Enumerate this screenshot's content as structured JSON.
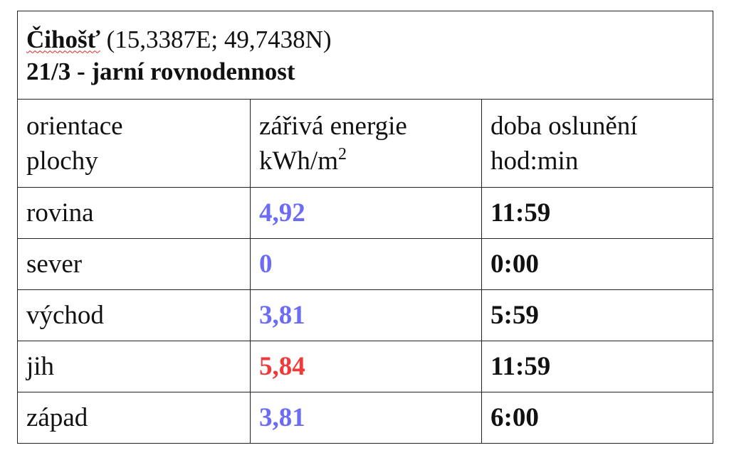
{
  "header": {
    "place": "Čihošť",
    "coordinates": "(15,3387E; 49,7438N)",
    "subtitle": "21/3 - jarní rovnodennost"
  },
  "table": {
    "columns": [
      {
        "lines": [
          "orientace",
          "plochy"
        ]
      },
      {
        "lines": [
          "zářivá energie",
          "kWh/m"
        ],
        "superscript": "2"
      },
      {
        "lines": [
          "doba oslunění",
          "hod:min"
        ]
      }
    ],
    "rows": [
      {
        "orientation": "rovina",
        "energy": "4,92",
        "energy_color": "#6b6bf5",
        "duration": "11:59"
      },
      {
        "orientation": "sever",
        "energy": "0",
        "energy_color": "#6b6bf5",
        "duration": "0:00"
      },
      {
        "orientation": "východ",
        "energy": "3,81",
        "energy_color": "#6b6bf5",
        "duration": "5:59"
      },
      {
        "orientation": "jih",
        "energy": "5,84",
        "energy_color": "#f03a3a",
        "duration": "11:59"
      },
      {
        "orientation": "západ",
        "energy": "3,81",
        "energy_color": "#6b6bf5",
        "duration": "6:00"
      }
    ]
  }
}
